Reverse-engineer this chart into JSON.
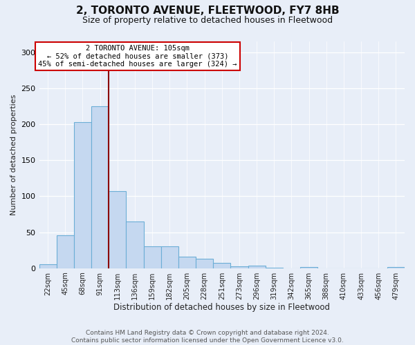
{
  "title": "2, TORONTO AVENUE, FLEETWOOD, FY7 8HB",
  "subtitle": "Size of property relative to detached houses in Fleetwood",
  "xlabel": "Distribution of detached houses by size in Fleetwood",
  "ylabel": "Number of detached properties",
  "bar_labels": [
    "22sqm",
    "45sqm",
    "68sqm",
    "91sqm",
    "113sqm",
    "136sqm",
    "159sqm",
    "182sqm",
    "205sqm",
    "228sqm",
    "251sqm",
    "273sqm",
    "296sqm",
    "319sqm",
    "342sqm",
    "365sqm",
    "388sqm",
    "410sqm",
    "433sqm",
    "456sqm",
    "479sqm"
  ],
  "bar_values": [
    5,
    46,
    203,
    225,
    107,
    65,
    30,
    30,
    16,
    13,
    7,
    3,
    4,
    1,
    0,
    2,
    0,
    0,
    0,
    0,
    2
  ],
  "bar_color": "#c5d8f0",
  "bar_edge_color": "#6baed6",
  "vline_color": "#8b0000",
  "vline_x_idx": 3,
  "annotation_text": "2 TORONTO AVENUE: 105sqm\n← 52% of detached houses are smaller (373)\n45% of semi-detached houses are larger (324) →",
  "annotation_box_facecolor": "white",
  "annotation_box_edgecolor": "#cc0000",
  "ylim": [
    0,
    315
  ],
  "yticks": [
    0,
    50,
    100,
    150,
    200,
    250,
    300
  ],
  "footer_text": "Contains HM Land Registry data © Crown copyright and database right 2024.\nContains public sector information licensed under the Open Government Licence v3.0.",
  "bg_color": "#e8eef8",
  "grid_color": "#d0d8e8",
  "title_fontsize": 11,
  "subtitle_fontsize": 9
}
